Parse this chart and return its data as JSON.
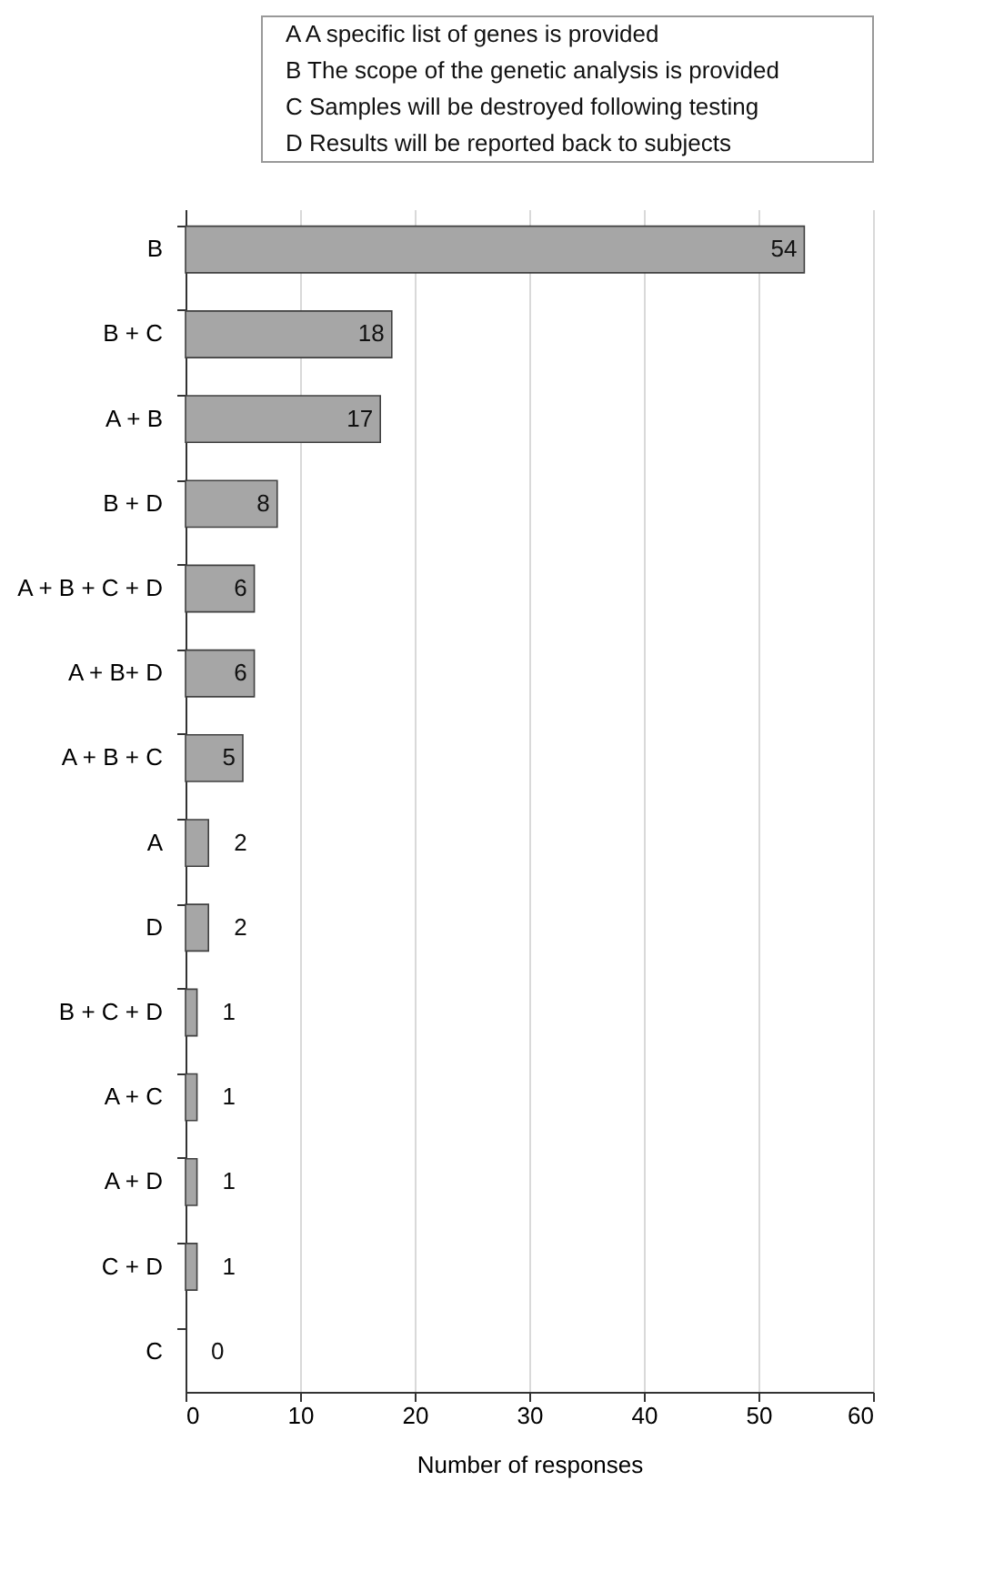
{
  "chart_data": {
    "type": "bar",
    "orientation": "horizontal",
    "categories": [
      "B",
      "B + C",
      "A + B",
      "B + D",
      "A + B + C + D",
      "A + B+ D",
      "A + B + C",
      "A",
      "D",
      "B + C + D",
      "A + C",
      "A + D",
      "C + D",
      "C"
    ],
    "values": [
      54,
      18,
      17,
      8,
      6,
      6,
      5,
      2,
      2,
      1,
      1,
      1,
      1,
      0
    ],
    "color": "#a6a6a6",
    "xlim": [
      0,
      60
    ],
    "xticks": [
      0,
      10,
      20,
      30,
      40,
      50,
      60
    ],
    "xlabel": "Number of responses",
    "grid": "x",
    "data_labels": true,
    "annotations": [
      "A   A specific list of genes is provided",
      "B   The scope of the genetic analysis is provided",
      "C   Samples will be destroyed following testing",
      "D   Results will be reported back to subjects"
    ]
  }
}
